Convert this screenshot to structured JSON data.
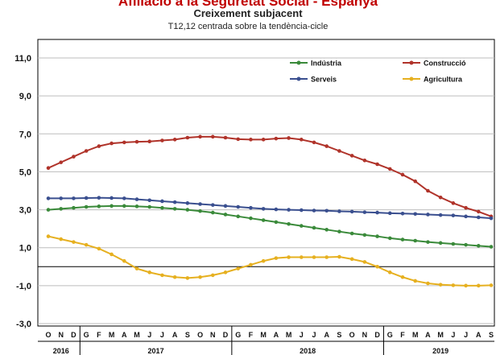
{
  "header": {
    "title": "Afiliació a la Seguretat Social - Espanya",
    "subtitle": "Creixement subjacent",
    "subtitle2": "T12,12 centrada sobre la tendència-cicle"
  },
  "chart_data": {
    "type": "line",
    "title": "Afiliació a la Seguretat Social - Espanya",
    "subtitle": "Creixement subjacent",
    "ylim": [
      -3.0,
      11.0
    ],
    "y_ticks": [
      "11,0",
      "9,0",
      "7,0",
      "5,0",
      "3,0",
      "1,0",
      "-1,0",
      "-3,0"
    ],
    "y_tick_values": [
      11,
      9,
      7,
      5,
      3,
      1,
      -1,
      -3
    ],
    "grid": "horizontal",
    "legend_position": "top-right",
    "categories": [
      "O",
      "N",
      "D",
      "G",
      "F",
      "M",
      "A",
      "M",
      "J",
      "J",
      "A",
      "S",
      "O",
      "N",
      "D",
      "G",
      "F",
      "M",
      "A",
      "M",
      "J",
      "J",
      "A",
      "S",
      "O",
      "N",
      "D",
      "G",
      "F",
      "M",
      "A",
      "M",
      "J",
      "J",
      "A",
      "S"
    ],
    "years": [
      {
        "label": "2016",
        "start": 0,
        "end": 2
      },
      {
        "label": "2017",
        "start": 3,
        "end": 14
      },
      {
        "label": "2018",
        "start": 15,
        "end": 26
      },
      {
        "label": "2019",
        "start": 27,
        "end": 35
      }
    ],
    "series": [
      {
        "name": "Indústria",
        "color": "#3a8a3a",
        "values": [
          3.0,
          3.05,
          3.1,
          3.15,
          3.18,
          3.2,
          3.2,
          3.18,
          3.15,
          3.1,
          3.05,
          3.0,
          2.93,
          2.85,
          2.75,
          2.65,
          2.55,
          2.45,
          2.35,
          2.25,
          2.15,
          2.05,
          1.95,
          1.85,
          1.75,
          1.67,
          1.6,
          1.5,
          1.43,
          1.37,
          1.3,
          1.25,
          1.2,
          1.15,
          1.1,
          1.05
        ]
      },
      {
        "name": "Construcció",
        "color": "#b0332a",
        "values": [
          5.2,
          5.5,
          5.8,
          6.1,
          6.35,
          6.5,
          6.55,
          6.58,
          6.6,
          6.65,
          6.7,
          6.8,
          6.85,
          6.85,
          6.8,
          6.72,
          6.7,
          6.7,
          6.75,
          6.78,
          6.7,
          6.55,
          6.35,
          6.1,
          5.85,
          5.6,
          5.4,
          5.15,
          4.85,
          4.5,
          4.0,
          3.65,
          3.35,
          3.1,
          2.9,
          2.65
        ]
      },
      {
        "name": "Serveis",
        "color": "#3a4f8f",
        "values": [
          3.6,
          3.6,
          3.6,
          3.62,
          3.63,
          3.62,
          3.6,
          3.55,
          3.5,
          3.45,
          3.4,
          3.35,
          3.3,
          3.25,
          3.2,
          3.15,
          3.1,
          3.05,
          3.02,
          3.0,
          2.98,
          2.96,
          2.95,
          2.92,
          2.9,
          2.87,
          2.85,
          2.82,
          2.8,
          2.78,
          2.75,
          2.72,
          2.7,
          2.65,
          2.6,
          2.55
        ]
      },
      {
        "name": "Agricultura",
        "color": "#e6b020",
        "values": [
          1.6,
          1.45,
          1.3,
          1.15,
          0.95,
          0.65,
          0.3,
          -0.1,
          -0.3,
          -0.45,
          -0.55,
          -0.6,
          -0.55,
          -0.45,
          -0.3,
          -0.1,
          0.1,
          0.3,
          0.45,
          0.5,
          0.5,
          0.5,
          0.5,
          0.52,
          0.4,
          0.25,
          0.0,
          -0.3,
          -0.55,
          -0.75,
          -0.88,
          -0.95,
          -0.98,
          -1.0,
          -1.0,
          -0.98
        ]
      }
    ]
  }
}
